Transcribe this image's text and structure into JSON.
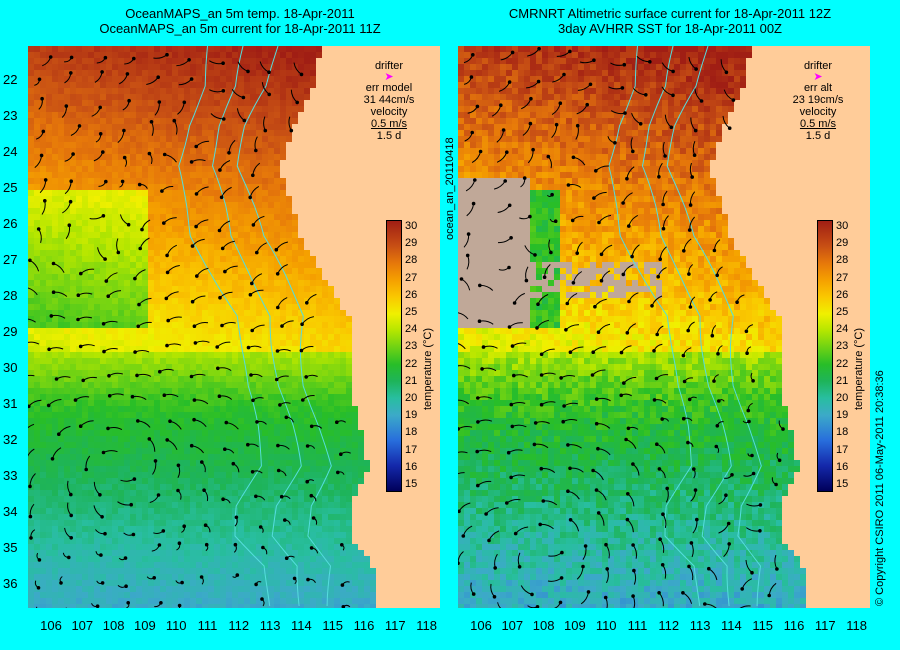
{
  "titles": {
    "left_line1": "OceanMAPS_an 5m temp. 18-Apr-2011",
    "left_line2": "OceanMAPS_an 5m current for 18-Apr-2011 11Z",
    "right_line1": "CMRNRT Altimetric surface current for 18-Apr-2011 12Z",
    "right_line2": "3day AVHRR SST for 18-Apr-2011 00Z"
  },
  "latitudes": [
    "22",
    "23",
    "24",
    "25",
    "26",
    "27",
    "28",
    "29",
    "30",
    "31",
    "32",
    "33",
    "34",
    "35",
    "36"
  ],
  "longitudes": [
    "106",
    "107",
    "108",
    "109",
    "110",
    "111",
    "112",
    "113",
    "114",
    "115",
    "116",
    "117",
    "118"
  ],
  "legend_left": {
    "drifter": "drifter",
    "err": "err model",
    "err_value": "31 44cm/s",
    "velocity": "velocity",
    "velocity_value": "0.5 m/s",
    "duration": "1.5 d"
  },
  "legend_right": {
    "drifter": "drifter",
    "err": "err alt",
    "err_value": "23 19cm/s",
    "velocity": "velocity",
    "velocity_value": "0.5 m/s",
    "duration": "1.5 d"
  },
  "colorbar": {
    "label": "temperature (°C)",
    "ticks": [
      "30",
      "29",
      "28",
      "27",
      "26",
      "25",
      "24",
      "23",
      "22",
      "21",
      "20",
      "19",
      "18",
      "17",
      "16",
      "15"
    ]
  },
  "side_label_run": "ocean_an_20110418",
  "side_label_copyright": "© Copyright CSIRO 2011   06-May-2011 20:38:36",
  "colors": {
    "background": "#00ffff",
    "land": "#ffcc99",
    "no_data": "#c0a898",
    "drifter_arrow": "#ff00ff",
    "contour": "#55dddd"
  },
  "map_extent": {
    "lon": [
      105.9,
      118.4
    ],
    "lat": [
      36.6,
      21.3
    ]
  }
}
